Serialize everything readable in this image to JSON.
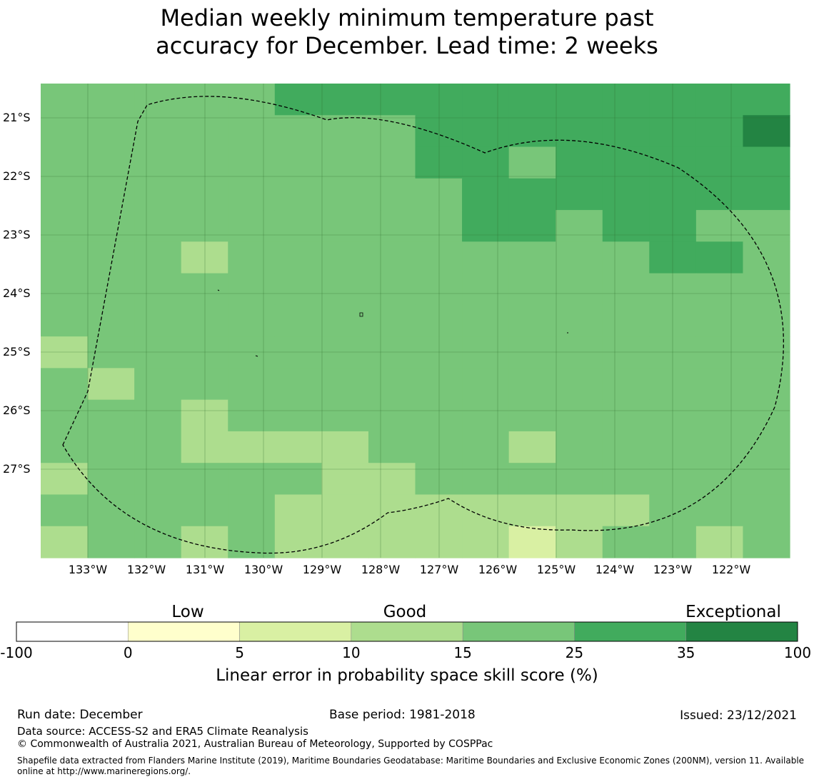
{
  "title": {
    "line1": "Median weekly minimum temperature past",
    "line2": "accuracy for December. Lead time: 2 weeks"
  },
  "map": {
    "lat_labels": [
      "21°S",
      "22°S",
      "23°S",
      "24°S",
      "25°S",
      "26°S",
      "27°S"
    ],
    "lon_labels": [
      "133°W",
      "132°W",
      "131°W",
      "130°W",
      "129°W",
      "128°W",
      "127°W",
      "126°W",
      "125°W",
      "124°W",
      "123°W",
      "122°W"
    ],
    "grid_columns": 16,
    "grid_rows": 15,
    "grid_categories": [
      "4444455555555555",
      "4444444455555556",
      "4444444455455555",
      "4444444445555555",
      "4444444445545544",
      "4443444444444554",
      "4444444444444444",
      "4444444444444444",
      "3444444444444444",
      "4344444444444444",
      "4443444444444444",
      "4443333444344444",
      "3444443344444444",
      "4444433333333444",
      "3443433333234434"
    ],
    "boundary_label": "Exclusive Economic Zone boundary"
  },
  "legend": {
    "category_labels": [
      "Low",
      "Good",
      "Exceptional"
    ],
    "tick_labels": [
      "-100",
      "0",
      "5",
      "10",
      "15",
      "25",
      "35",
      "100"
    ],
    "colors": [
      "#ffffff",
      "#ffffcc",
      "#d9f0a3",
      "#addd8e",
      "#78c679",
      "#41ab5d",
      "#238443"
    ],
    "colorbar_label": "Linear error in probability space skill score (%)"
  },
  "footer": {
    "run_date": "Run date: December",
    "base_period": "Base period: 1981-2018",
    "issued": "Issued: 23/12/2021",
    "data_source": "Data source: ACCESS-S2 and ERA5 Climate Reanalysis",
    "copyright": "© Commonwealth of Australia 2021, Australian Bureau of Meteorology, Supported by COSPPac",
    "shapefile_note": "Shapefile data extracted from Flanders Marine Institute (2019), Maritime Boundaries Geodatabase: Maritime Boundaries and Exclusive Economic Zones (200NM), version 11. Available online at http://www.marineregions.org/."
  }
}
